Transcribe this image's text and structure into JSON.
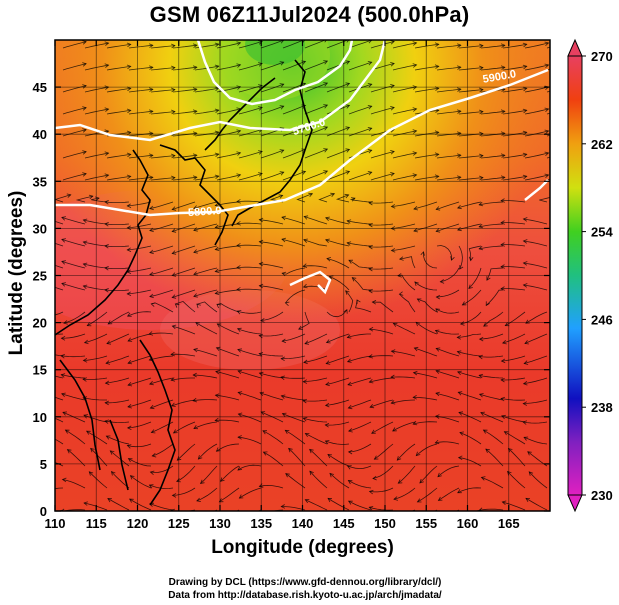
{
  "title": "GSM 06Z11Jul2024 (500.0hPa)",
  "x_axis": {
    "label": "Longitude (degrees)",
    "range": [
      110,
      170
    ],
    "ticks": [
      "110",
      "115",
      "120",
      "125",
      "130",
      "135",
      "140",
      "145",
      "150",
      "155",
      "160",
      "165"
    ]
  },
  "y_axis": {
    "label": "Latitude  (degrees)",
    "range": [
      0,
      50
    ],
    "ticks": [
      "0",
      "5",
      "10",
      "15",
      "20",
      "25",
      "30",
      "35",
      "40",
      "45"
    ]
  },
  "colorbar": {
    "range": [
      230,
      270
    ],
    "tick_labels": [
      "230",
      "238",
      "246",
      "254",
      "262",
      "270"
    ],
    "colors": [
      "#e020c0",
      "#1010c0",
      "#20a0ff",
      "#20c060",
      "#40d020",
      "#f0e010",
      "#f08010",
      "#e03020",
      "#e84060"
    ]
  },
  "contours": [
    {
      "label": "5800.0",
      "color": "#ffffff"
    },
    {
      "label": "5700.0",
      "color": "#ffffff"
    },
    {
      "label": "5900.0",
      "color": "#ffffff"
    }
  ],
  "credits": {
    "line1": "Drawing by DCL (https://www.gfd-dennou.org/library/dcl/)",
    "line2": "Data from http://database.rish.kyoto-u.ac.jp/arch/jmadata/"
  }
}
